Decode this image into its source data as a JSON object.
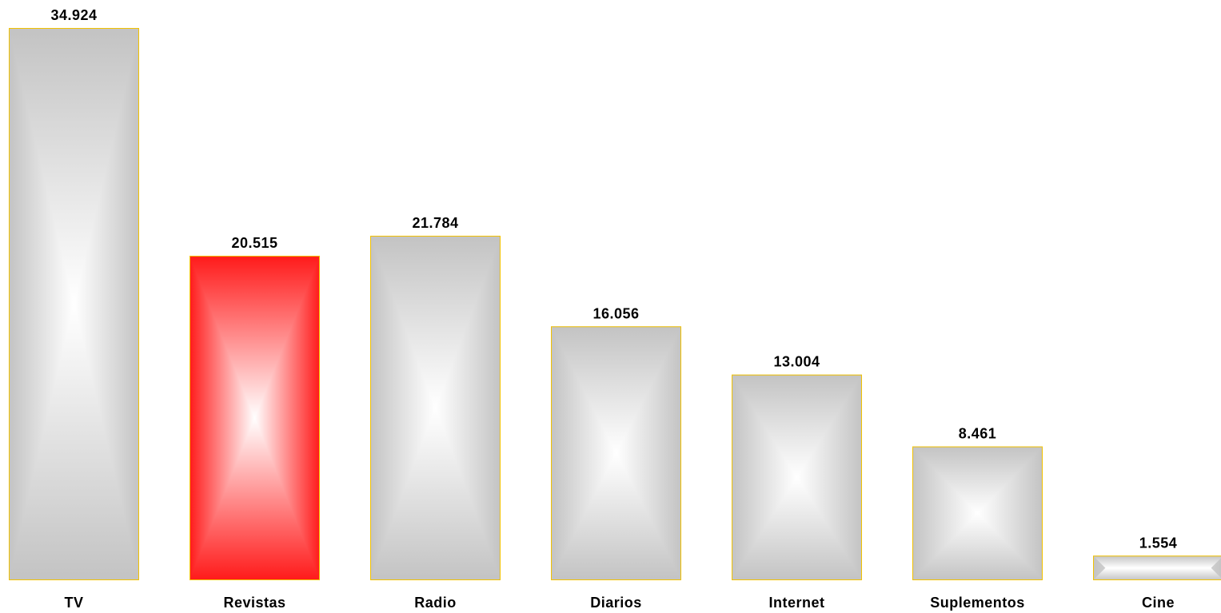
{
  "chart_data": {
    "type": "bar",
    "categories": [
      "TV",
      "Revistas",
      "Radio",
      "Diarios",
      "Internet",
      "Suplementos",
      "Cine"
    ],
    "values": [
      34.924,
      20.515,
      21.784,
      16.056,
      13.004,
      8.461,
      1.554
    ],
    "value_labels": [
      "34.924",
      "20.515",
      "21.784",
      "16.056",
      "13.004",
      "8.461",
      "1.554"
    ],
    "highlight_index": 1,
    "title": "",
    "xlabel": "",
    "ylabel": "",
    "ylim": [
      0,
      34.924
    ],
    "grid": false,
    "legend": "none"
  },
  "colors": {
    "bar_edge": "#f2c200",
    "bar_outer": "#c3c3c3",
    "bar_center": "#ffffff",
    "highlight_outer": "#ff1a1a",
    "highlight_center": "#ffffff",
    "text": "#000000"
  }
}
